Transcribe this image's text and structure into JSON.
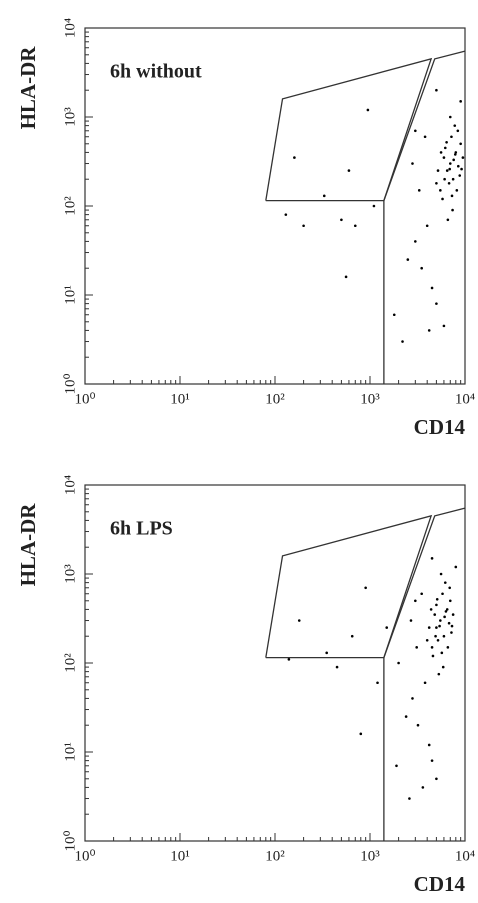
{
  "chart_data": [
    {
      "type": "scatter",
      "title": "6h without",
      "xlabel": "CD14",
      "ylabel": "HLA-DR",
      "xscale": "log",
      "yscale": "log",
      "xlim": [
        1,
        10000
      ],
      "ylim": [
        1,
        10000
      ],
      "xticks": [
        {
          "value": 1,
          "label": "10⁰"
        },
        {
          "value": 10,
          "label": "10¹"
        },
        {
          "value": 100,
          "label": "10²"
        },
        {
          "value": 1000,
          "label": "10³"
        },
        {
          "value": 10000,
          "label": "10⁴"
        }
      ],
      "yticks": [
        {
          "value": 1,
          "label": "10⁰"
        },
        {
          "value": 10,
          "label": "10¹"
        },
        {
          "value": 100,
          "label": "10²"
        },
        {
          "value": 1000,
          "label": "10³"
        },
        {
          "value": 10000,
          "label": "10⁴"
        }
      ],
      "color": "#000000",
      "gates": [
        {
          "x": [
            80,
            120,
            4400,
            1400,
            80
          ],
          "y": [
            115,
            1600,
            4500,
            115,
            115
          ]
        },
        {
          "x": [
            1400,
            1400,
            4800,
            10000
          ],
          "y": [
            1,
            115,
            4500,
            5500
          ]
        }
      ],
      "x": [
        7000,
        6500,
        8000,
        7500,
        6000,
        5500,
        9000,
        8500,
        7200,
        6800,
        5800,
        7800,
        6200,
        8800,
        7400,
        6600,
        9500,
        5200,
        7000,
        8200,
        6400,
        7600,
        5600,
        8400,
        6900,
        7300,
        6100,
        7900,
        5000,
        9200,
        4000,
        3500,
        5000,
        4200,
        6000,
        3000,
        2500,
        4500,
        2200,
        1800,
        3800,
        2800,
        3300,
        950,
        330,
        160,
        600,
        130,
        500,
        560,
        700,
        1100,
        200,
        3000,
        5000,
        9000
      ],
      "y": [
        300,
        250,
        400,
        200,
        350,
        150,
        500,
        280,
        600,
        180,
        120,
        800,
        450,
        220,
        90,
        70,
        350,
        250,
        1000,
        150,
        520,
        330,
        400,
        700,
        260,
        130,
        200,
        380,
        180,
        260,
        60,
        20,
        8,
        4,
        4.5,
        40,
        25,
        12,
        3,
        6,
        600,
        300,
        150,
        1200,
        130,
        350,
        250,
        80,
        70,
        16,
        60,
        100,
        60,
        700,
        2000,
        1500
      ]
    },
    {
      "type": "scatter",
      "title": "6h LPS",
      "xlabel": "CD14",
      "ylabel": "HLA-DR",
      "xscale": "log",
      "yscale": "log",
      "xlim": [
        1,
        10000
      ],
      "ylim": [
        1,
        10000
      ],
      "xticks": [
        {
          "value": 1,
          "label": "10⁰"
        },
        {
          "value": 10,
          "label": "10¹"
        },
        {
          "value": 100,
          "label": "10²"
        },
        {
          "value": 1000,
          "label": "10³"
        },
        {
          "value": 10000,
          "label": "10⁴"
        }
      ],
      "yticks": [
        {
          "value": 1,
          "label": "10⁰"
        },
        {
          "value": 10,
          "label": "10¹"
        },
        {
          "value": 100,
          "label": "10²"
        },
        {
          "value": 1000,
          "label": "10³"
        },
        {
          "value": 10000,
          "label": "10⁴"
        }
      ],
      "color": "#000000",
      "gates": [
        {
          "x": [
            80,
            120,
            4400,
            1400,
            80
          ],
          "y": [
            115,
            1600,
            4500,
            115,
            115
          ]
        },
        {
          "x": [
            1400,
            1400,
            4800,
            10000
          ],
          "y": [
            1,
            115,
            4500,
            5500
          ]
        }
      ],
      "x": [
        5500,
        5000,
        6500,
        6000,
        4800,
        4500,
        7000,
        6800,
        5800,
        5200,
        4600,
        6200,
        5000,
        7200,
        5900,
        5300,
        7500,
        4200,
        5600,
        6600,
        5100,
        6100,
        4400,
        6900,
        5400,
        5700,
        4900,
        6300,
        4000,
        7300,
        3800,
        3200,
        4500,
        3600,
        5000,
        2800,
        2400,
        4200,
        2600,
        1900,
        3500,
        2700,
        3100,
        900,
        350,
        180,
        650,
        140,
        450,
        800,
        1200,
        2000,
        3000,
        4500,
        8000,
        1500
      ],
      "y": [
        300,
        250,
        400,
        200,
        350,
        150,
        500,
        280,
        600,
        180,
        120,
        800,
        450,
        220,
        90,
        75,
        350,
        250,
        1000,
        150,
        520,
        330,
        400,
        700,
        260,
        130,
        200,
        380,
        180,
        260,
        60,
        20,
        8,
        4,
        5,
        40,
        25,
        12,
        3,
        7,
        600,
        300,
        150,
        700,
        130,
        300,
        200,
        110,
        90,
        16,
        60,
        100,
        500,
        1500,
        1200,
        250
      ]
    }
  ]
}
